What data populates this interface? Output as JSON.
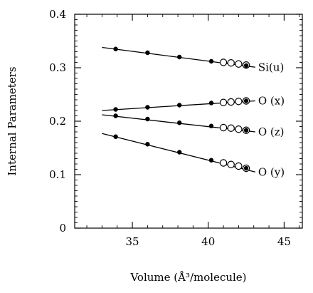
{
  "chart_data": {
    "type": "line",
    "title": "",
    "xlabel": "Volume (Å³/molecule)",
    "ylabel": "Internal Parameters",
    "xlim": [
      31.2,
      46.2
    ],
    "ylim": [
      0,
      0.4
    ],
    "xticks": [
      35,
      40,
      45
    ],
    "xtick_labels": [
      "35",
      "40",
      "45"
    ],
    "yticks": [
      0,
      0.1,
      0.2,
      0.3,
      0.4
    ],
    "ytick_labels": [
      "0",
      "0.1",
      "0.2",
      "0.3",
      "0.4"
    ],
    "grid": false,
    "series": [
      {
        "name": "Si(u)",
        "line": [
          [
            33.0,
            0.338
          ],
          [
            43.1,
            0.301
          ]
        ],
        "filled": [
          [
            33.9,
            0.335
          ],
          [
            36.0,
            0.328
          ],
          [
            38.1,
            0.32
          ],
          [
            40.2,
            0.312
          ],
          [
            42.5,
            0.304
          ]
        ],
        "open": [
          [
            41.0,
            0.31
          ],
          [
            41.5,
            0.309
          ],
          [
            42.0,
            0.307
          ],
          [
            42.5,
            0.305
          ]
        ]
      },
      {
        "name": "O (x)",
        "line": [
          [
            33.0,
            0.22
          ],
          [
            43.1,
            0.238
          ]
        ],
        "filled": [
          [
            33.9,
            0.222
          ],
          [
            36.0,
            0.226
          ],
          [
            38.1,
            0.23
          ],
          [
            40.2,
            0.234
          ],
          [
            42.5,
            0.238
          ]
        ],
        "open": [
          [
            41.0,
            0.235
          ],
          [
            41.5,
            0.236
          ],
          [
            42.0,
            0.237
          ],
          [
            42.5,
            0.238
          ]
        ]
      },
      {
        "name": "O (z)",
        "line": [
          [
            33.0,
            0.212
          ],
          [
            43.1,
            0.18
          ]
        ],
        "filled": [
          [
            33.9,
            0.21
          ],
          [
            36.0,
            0.204
          ],
          [
            38.1,
            0.197
          ],
          [
            40.2,
            0.191
          ],
          [
            42.5,
            0.183
          ]
        ],
        "open": [
          [
            41.0,
            0.188
          ],
          [
            41.5,
            0.187
          ],
          [
            42.0,
            0.185
          ],
          [
            42.5,
            0.183
          ]
        ]
      },
      {
        "name": "O (y)",
        "line": [
          [
            33.0,
            0.177
          ],
          [
            43.1,
            0.105
          ]
        ],
        "filled": [
          [
            33.9,
            0.171
          ],
          [
            36.0,
            0.157
          ],
          [
            38.1,
            0.142
          ],
          [
            40.2,
            0.127
          ],
          [
            42.5,
            0.112
          ]
        ],
        "open": [
          [
            41.0,
            0.122
          ],
          [
            41.5,
            0.119
          ],
          [
            42.0,
            0.116
          ],
          [
            42.5,
            0.112
          ]
        ]
      }
    ]
  }
}
